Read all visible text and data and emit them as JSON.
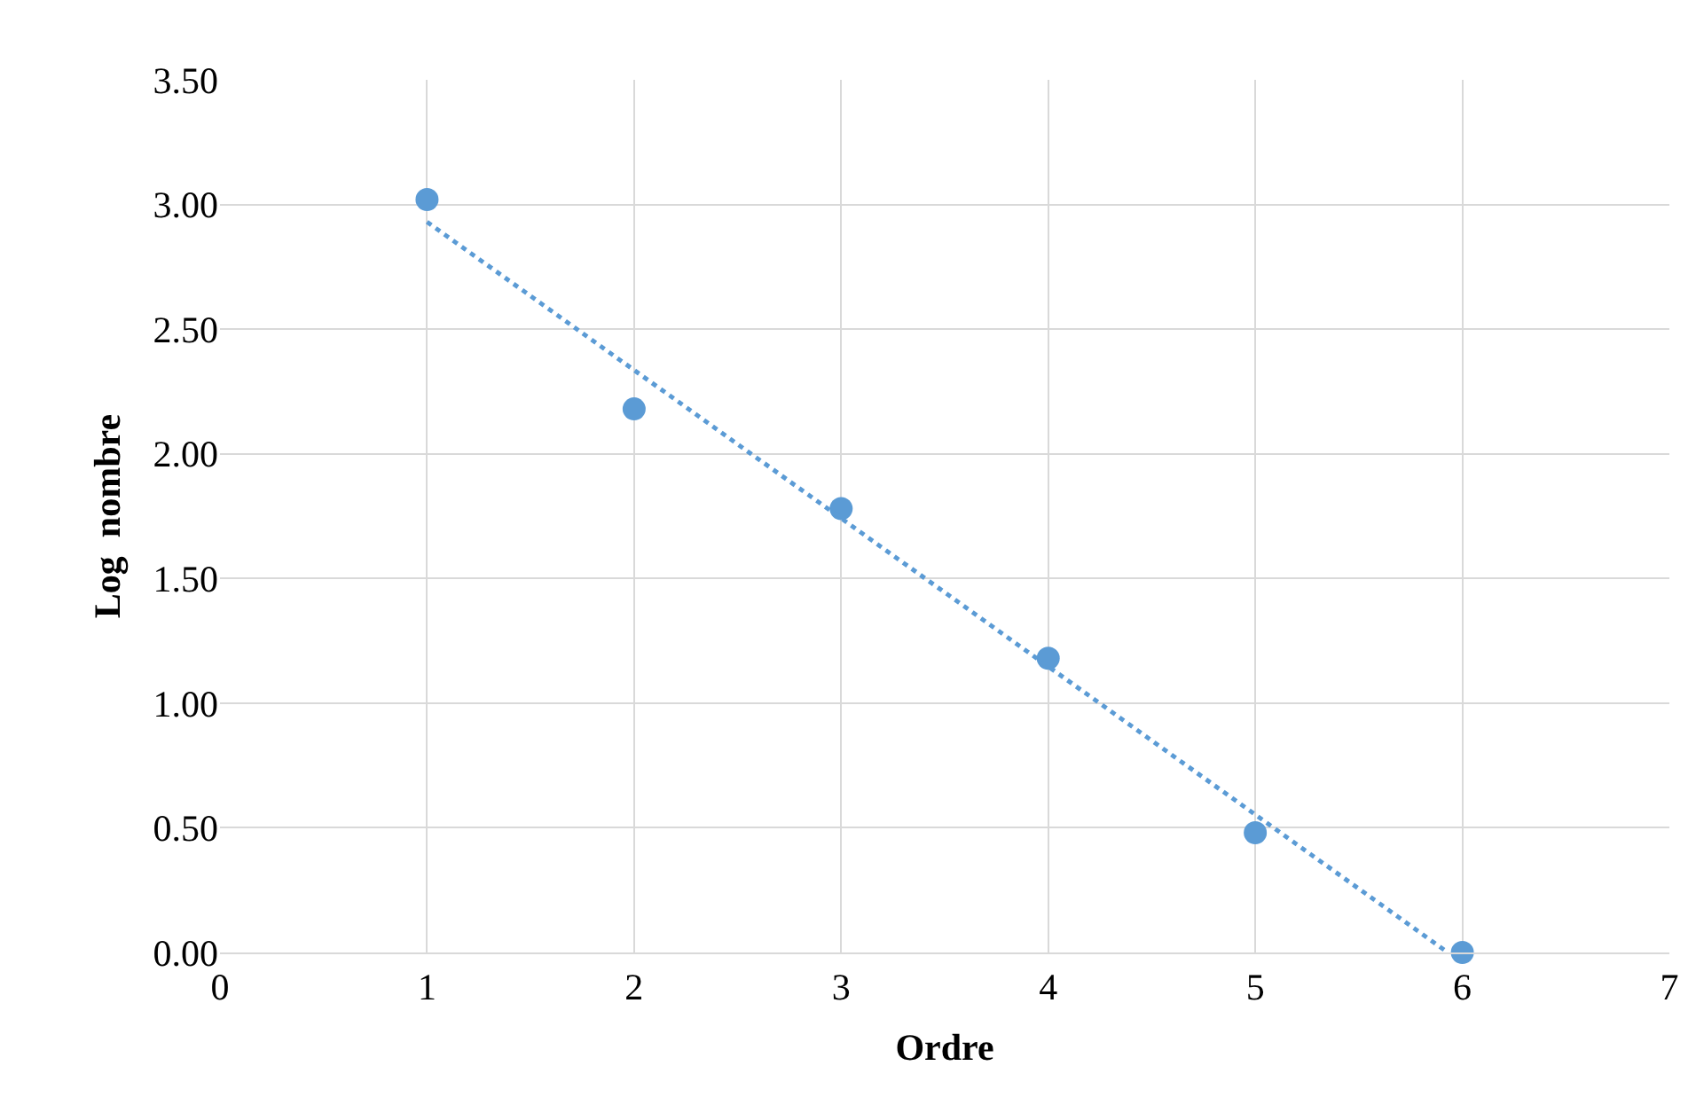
{
  "chart_data": {
    "type": "scatter",
    "xlabel": "Ordre",
    "ylabel": "Log  nombre",
    "series": [
      {
        "color": "#5b9bd5",
        "marker": "circle",
        "x": [
          1,
          2,
          3,
          4,
          5,
          6
        ],
        "values": [
          3.02,
          2.18,
          1.78,
          1.18,
          0.48,
          0.0
        ]
      },
      {
        "type": "line",
        "color": "#5b9bd5",
        "marker": "none",
        "line_style": "dotted",
        "x": [
          1,
          5.93
        ],
        "values": [
          2.93,
          0.0
        ]
      }
    ],
    "xlim": [
      0,
      7
    ],
    "xticks": [
      0,
      1,
      2,
      3,
      4,
      5,
      6,
      7
    ],
    "ylim": [
      0,
      3.5
    ],
    "yticks": [
      {
        "value": 0,
        "label": "0.00"
      },
      {
        "value": 0.5,
        "label": "0.50"
      },
      {
        "value": 1,
        "label": "1.00"
      },
      {
        "value": 1.5,
        "label": "1.50"
      },
      {
        "value": 2,
        "label": "2.00"
      },
      {
        "value": 2.5,
        "label": "2.50"
      },
      {
        "value": 3,
        "label": "3.00"
      },
      {
        "value": 3.5,
        "label": "3.50"
      }
    ],
    "grid": true
  }
}
